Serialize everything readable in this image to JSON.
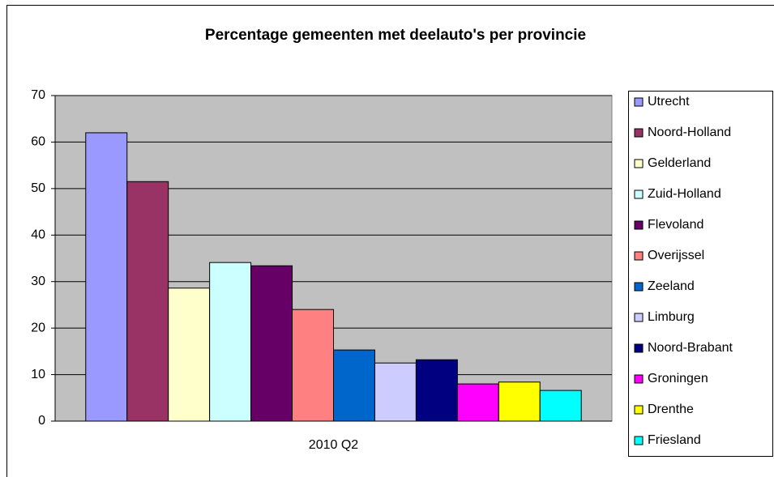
{
  "chart_data": {
    "type": "bar",
    "title": "Percentage gemeenten met deelauto's per provincie",
    "categories": [
      "2010 Q2"
    ],
    "series": [
      {
        "name": "Utrecht",
        "color": "#9999ff",
        "values": [
          62.0
        ]
      },
      {
        "name": "Noord-Holland",
        "color": "#993366",
        "values": [
          51.5
        ]
      },
      {
        "name": "Gelderland",
        "color": "#ffffcc",
        "values": [
          28.6
        ]
      },
      {
        "name": "Zuid-Holland",
        "color": "#ccffff",
        "values": [
          34.1
        ]
      },
      {
        "name": "Flevoland",
        "color": "#660066",
        "values": [
          33.4
        ]
      },
      {
        "name": "Overijssel",
        "color": "#ff8080",
        "values": [
          24.0
        ]
      },
      {
        "name": "Zeeland",
        "color": "#0066cc",
        "values": [
          15.3
        ]
      },
      {
        "name": "Limburg",
        "color": "#ccccff",
        "values": [
          12.5
        ]
      },
      {
        "name": "Noord-Brabant",
        "color": "#000080",
        "values": [
          13.2
        ]
      },
      {
        "name": "Groningen",
        "color": "#ff00ff",
        "values": [
          8.0
        ]
      },
      {
        "name": "Drenthe",
        "color": "#ffff00",
        "values": [
          8.4
        ]
      },
      {
        "name": "Friesland",
        "color": "#00ffff",
        "values": [
          6.6
        ]
      }
    ],
    "ylim": [
      0,
      70
    ],
    "yticks": [
      0,
      10,
      20,
      30,
      40,
      50,
      60,
      70
    ],
    "grid": true,
    "legend": "right"
  }
}
